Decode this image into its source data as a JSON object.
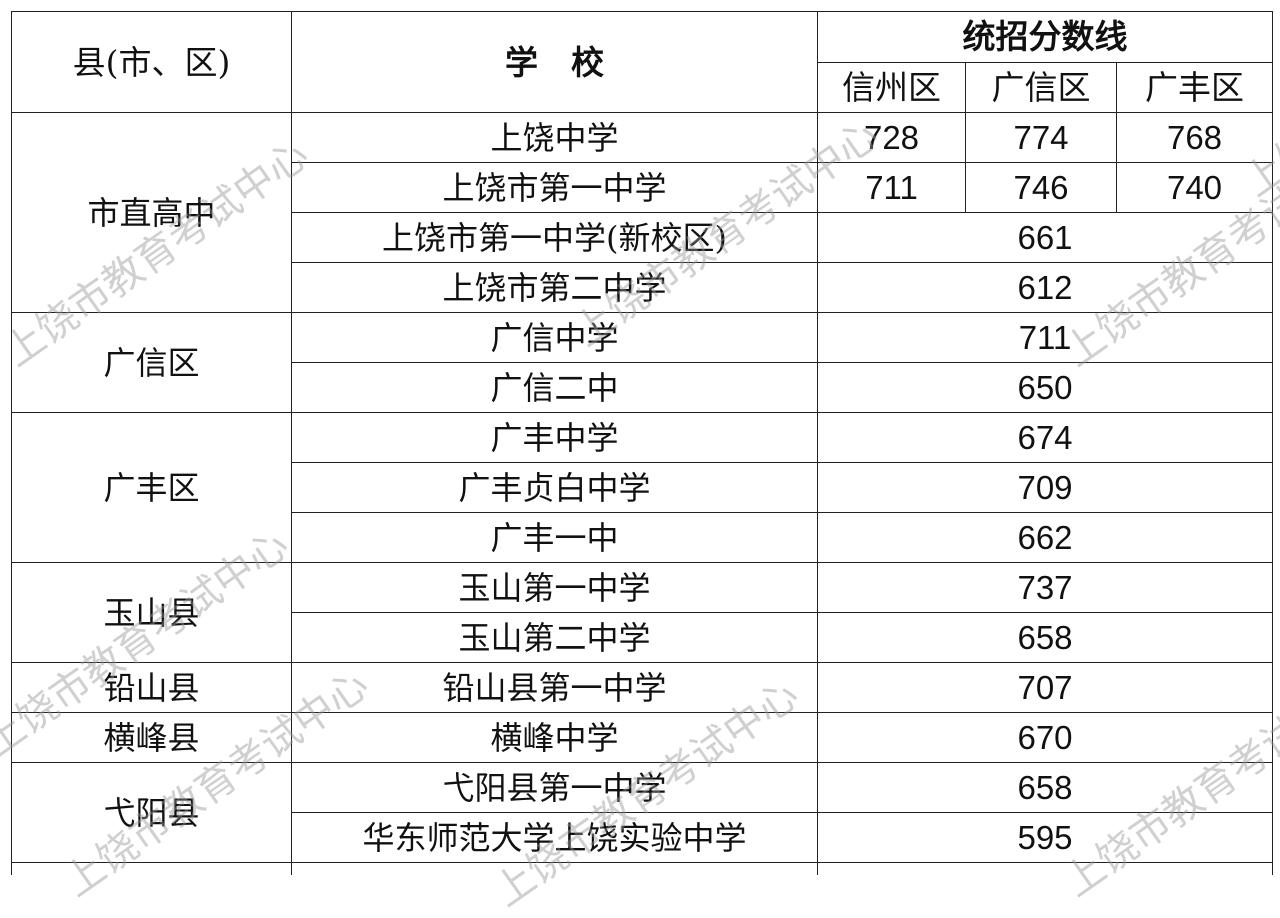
{
  "header": {
    "county": "县(市、区)",
    "school": "学　校",
    "score_line": "统招分数线",
    "districts": [
      "信州区",
      "广信区",
      "广丰区"
    ]
  },
  "groups": [
    {
      "county": "市直高中",
      "rows": [
        {
          "school": "上饶中学",
          "scores": [
            "728",
            "774",
            "768"
          ]
        },
        {
          "school": "上饶市第一中学",
          "scores": [
            "711",
            "746",
            "740"
          ]
        },
        {
          "school": "上饶市第一中学(新校区)",
          "scores": [
            "661"
          ]
        },
        {
          "school": "上饶市第二中学",
          "scores": [
            "612"
          ]
        }
      ]
    },
    {
      "county": "广信区",
      "rows": [
        {
          "school": "广信中学",
          "scores": [
            "711"
          ]
        },
        {
          "school": "广信二中",
          "scores": [
            "650"
          ]
        }
      ]
    },
    {
      "county": "广丰区",
      "rows": [
        {
          "school": "广丰中学",
          "scores": [
            "674"
          ]
        },
        {
          "school": "广丰贞白中学",
          "scores": [
            "709"
          ]
        },
        {
          "school": "广丰一中",
          "scores": [
            "662"
          ]
        }
      ]
    },
    {
      "county": "玉山县",
      "rows": [
        {
          "school": "玉山第一中学",
          "scores": [
            "737"
          ]
        },
        {
          "school": "玉山第二中学",
          "scores": [
            "658"
          ]
        }
      ]
    },
    {
      "county": "铅山县",
      "rows": [
        {
          "school": "铅山县第一中学",
          "scores": [
            "707"
          ]
        }
      ]
    },
    {
      "county": "横峰县",
      "rows": [
        {
          "school": "横峰中学",
          "scores": [
            "670"
          ]
        }
      ]
    },
    {
      "county": "弋阳县",
      "rows": [
        {
          "school": "弋阳县第一中学",
          "scores": [
            "658"
          ]
        },
        {
          "school": "华东师范大学上饶实验中学",
          "scores": [
            "595"
          ]
        }
      ]
    }
  ],
  "watermark": "上饶市教育考试中心"
}
